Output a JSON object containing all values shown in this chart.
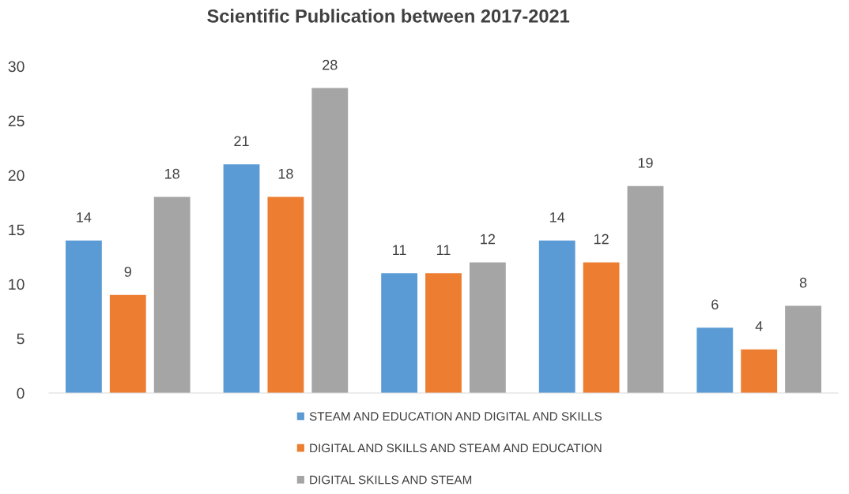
{
  "chart_data": {
    "type": "bar",
    "title": "Scientific Publication between 2017-2021",
    "categories": [
      null,
      null,
      null,
      null,
      null
    ],
    "series": [
      {
        "name": "STEAM AND EDUCATION AND DIGITAL AND SKILLS",
        "color": "#5b9bd5",
        "values": [
          14,
          21,
          11,
          14,
          6
        ]
      },
      {
        "name": "DIGITAL AND SKILLS AND STEAM AND EDUCATION",
        "color": "#ed7d31",
        "values": [
          9,
          18,
          11,
          12,
          4
        ]
      },
      {
        "name": "DIGITAL SKILLS AND STEAM",
        "color": "#a5a5a5",
        "values": [
          18,
          28,
          12,
          19,
          8
        ]
      }
    ],
    "ylim": [
      0,
      30
    ],
    "yticks": [
      0,
      5,
      10,
      15,
      20,
      25,
      30
    ],
    "grid": false,
    "legend": "bottom",
    "data_labels": true
  }
}
